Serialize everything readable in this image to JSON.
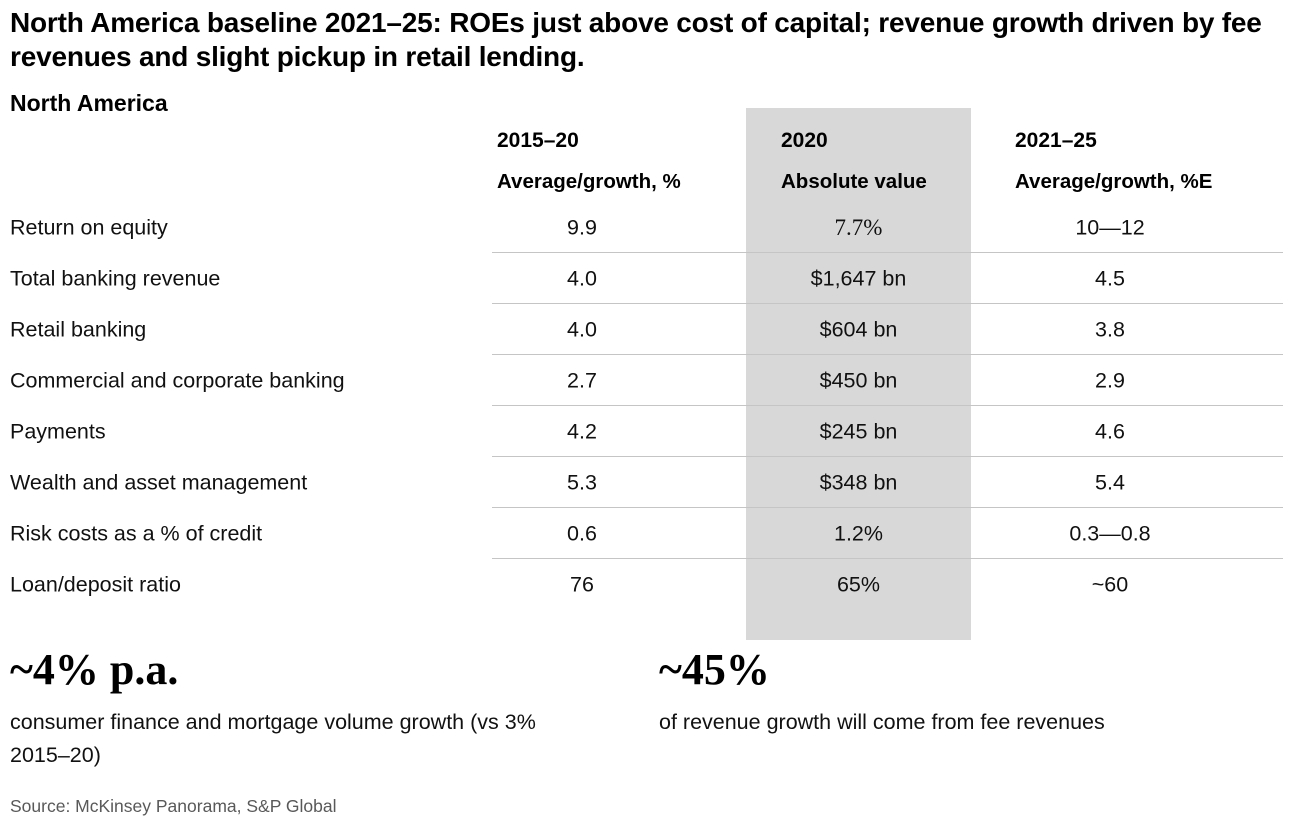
{
  "title": "North America baseline 2021–25: ROEs just above cost of capital; revenue growth driven by fee revenues and slight pickup in retail lending.",
  "region_label": "North America",
  "chart_data": {
    "type": "table",
    "title": "North America",
    "column_headers": [
      {
        "period": "2015–20",
        "measure": "Average/growth, %"
      },
      {
        "period": "2020",
        "measure": "Absolute value",
        "highlighted": true
      },
      {
        "period": "2021–25",
        "measure": "Average/growth, %E"
      }
    ],
    "rows": [
      {
        "label": "Return on equity",
        "avg_2015_20": "9.9",
        "abs_2020": "7.7%",
        "avg_2021_25": "10—12"
      },
      {
        "label": "Total banking revenue",
        "avg_2015_20": "4.0",
        "abs_2020": "$1,647 bn",
        "avg_2021_25": "4.5"
      },
      {
        "label": "Retail banking",
        "avg_2015_20": "4.0",
        "abs_2020": "$604 bn",
        "avg_2021_25": "3.8"
      },
      {
        "label": "Commercial and corporate banking",
        "avg_2015_20": "2.7",
        "abs_2020": "$450 bn",
        "avg_2021_25": "2.9"
      },
      {
        "label": "Payments",
        "avg_2015_20": "4.2",
        "abs_2020": "$245 bn",
        "avg_2021_25": "4.6"
      },
      {
        "label": "Wealth and asset management",
        "avg_2015_20": "5.3",
        "abs_2020": "$348 bn",
        "avg_2021_25": "5.4"
      },
      {
        "label": "Risk costs as a % of credit",
        "avg_2015_20": "0.6",
        "abs_2020": "1.2%",
        "avg_2021_25": "0.3—0.8"
      },
      {
        "label": "Loan/deposit ratio",
        "avg_2015_20": "76",
        "abs_2020": "65%",
        "avg_2021_25": "~60"
      }
    ]
  },
  "callouts": [
    {
      "value": "~4% p.a.",
      "description": "consumer finance and mortgage volume growth (vs 3% 2015–20)"
    },
    {
      "value": "~45%",
      "description": "of revenue growth will come from fee revenues"
    }
  ],
  "source": "Source: McKinsey Panorama, S&P Global",
  "colors": {
    "highlight_column_bg": "#d8d8d8",
    "divider": "#c5c5c5",
    "source_text": "#595959"
  }
}
